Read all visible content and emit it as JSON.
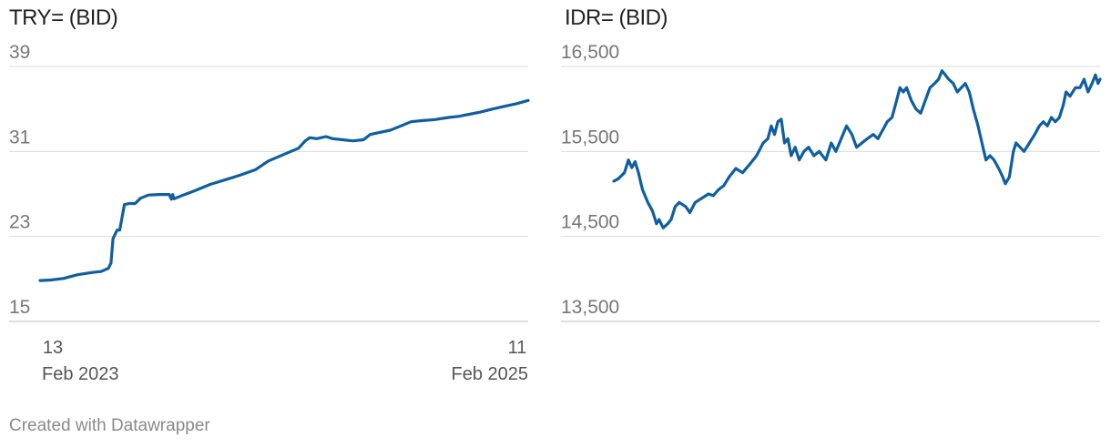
{
  "credit": "Created with Datawrapper",
  "colors": {
    "line": "#0f5fa0",
    "grid": "#dcdcdc",
    "tick_text": "#777777",
    "title_text": "#222222"
  },
  "chart_data": [
    {
      "type": "line",
      "title": "TRY= (BID)",
      "xlabel": "",
      "ylabel": "",
      "ylim": [
        15,
        39
      ],
      "y_ticks": [
        15,
        23,
        31,
        39
      ],
      "y_tick_labels": [
        "15",
        "23",
        "31",
        "39"
      ],
      "xlim": [
        "2023-02-13",
        "2025-02-11"
      ],
      "x_ticks": [
        {
          "date": "2023-02-13",
          "day": "13",
          "month": "Feb 2023"
        },
        {
          "date": "2025-02-11",
          "day": "11",
          "month": "Feb 2025"
        }
      ],
      "grid": true,
      "series": [
        {
          "points": [
            [
              "2023-02-13",
              18.85
            ],
            [
              "2023-03-01",
              18.9
            ],
            [
              "2023-03-20",
              19.05
            ],
            [
              "2023-04-10",
              19.4
            ],
            [
              "2023-05-01",
              19.6
            ],
            [
              "2023-05-15",
              19.7
            ],
            [
              "2023-05-26",
              20.0
            ],
            [
              "2023-05-30",
              20.5
            ],
            [
              "2023-06-02",
              22.8
            ],
            [
              "2023-06-08",
              23.6
            ],
            [
              "2023-06-12",
              23.6
            ],
            [
              "2023-06-19",
              26.0
            ],
            [
              "2023-06-26",
              26.1
            ],
            [
              "2023-07-05",
              26.1
            ],
            [
              "2023-07-13",
              26.6
            ],
            [
              "2023-07-25",
              26.9
            ],
            [
              "2023-08-10",
              26.95
            ],
            [
              "2023-08-25",
              26.95
            ],
            [
              "2023-08-28",
              26.5
            ],
            [
              "2023-08-30",
              26.95
            ],
            [
              "2023-09-01",
              26.55
            ],
            [
              "2023-09-15",
              26.9
            ],
            [
              "2023-10-02",
              27.3
            ],
            [
              "2023-10-25",
              27.9
            ],
            [
              "2023-11-20",
              28.4
            ],
            [
              "2023-12-10",
              28.8
            ],
            [
              "2024-01-01",
              29.3
            ],
            [
              "2024-01-20",
              30.1
            ],
            [
              "2024-02-15",
              30.8
            ],
            [
              "2024-03-05",
              31.3
            ],
            [
              "2024-03-15",
              32.0
            ],
            [
              "2024-03-22",
              32.3
            ],
            [
              "2024-04-01",
              32.2
            ],
            [
              "2024-04-15",
              32.4
            ],
            [
              "2024-04-25",
              32.2
            ],
            [
              "2024-05-10",
              32.1
            ],
            [
              "2024-05-25",
              32.0
            ],
            [
              "2024-06-10",
              32.1
            ],
            [
              "2024-06-20",
              32.6
            ],
            [
              "2024-07-05",
              32.8
            ],
            [
              "2024-07-20",
              33.0
            ],
            [
              "2024-08-05",
              33.4
            ],
            [
              "2024-08-20",
              33.8
            ],
            [
              "2024-09-05",
              33.9
            ],
            [
              "2024-09-25",
              34.0
            ],
            [
              "2024-10-15",
              34.2
            ],
            [
              "2024-10-30",
              34.3
            ],
            [
              "2024-11-15",
              34.5
            ],
            [
              "2024-12-01",
              34.7
            ],
            [
              "2024-12-20",
              35.0
            ],
            [
              "2025-01-10",
              35.3
            ],
            [
              "2025-01-25",
              35.5
            ],
            [
              "2025-02-11",
              35.8
            ]
          ]
        }
      ]
    },
    {
      "type": "line",
      "title": "IDR= (BID)",
      "xlabel": "",
      "ylabel": "",
      "ylim": [
        13500,
        16500
      ],
      "y_ticks": [
        13500,
        14500,
        15500,
        16500
      ],
      "y_tick_labels": [
        "13,500",
        "14,500",
        "15,500",
        "16,500"
      ],
      "xlim": [
        "2023-02-13",
        "2025-02-11"
      ],
      "grid": true,
      "series": [
        {
          "points": [
            [
              "2023-02-13",
              15150
            ],
            [
              "2023-02-20",
              15180
            ],
            [
              "2023-03-01",
              15250
            ],
            [
              "2023-03-07",
              15400
            ],
            [
              "2023-03-12",
              15310
            ],
            [
              "2023-03-17",
              15380
            ],
            [
              "2023-03-22",
              15250
            ],
            [
              "2023-03-28",
              15050
            ],
            [
              "2023-04-05",
              14900
            ],
            [
              "2023-04-12",
              14800
            ],
            [
              "2023-04-18",
              14650
            ],
            [
              "2023-04-22",
              14700
            ],
            [
              "2023-04-28",
              14600
            ],
            [
              "2023-05-05",
              14650
            ],
            [
              "2023-05-10",
              14700
            ],
            [
              "2023-05-16",
              14850
            ],
            [
              "2023-05-22",
              14900
            ],
            [
              "2023-06-01",
              14850
            ],
            [
              "2023-06-07",
              14780
            ],
            [
              "2023-06-15",
              14900
            ],
            [
              "2023-06-25",
              14950
            ],
            [
              "2023-07-05",
              15000
            ],
            [
              "2023-07-12",
              14980
            ],
            [
              "2023-07-20",
              15050
            ],
            [
              "2023-07-28",
              15100
            ],
            [
              "2023-08-05",
              15200
            ],
            [
              "2023-08-15",
              15300
            ],
            [
              "2023-08-25",
              15250
            ],
            [
              "2023-09-05",
              15350
            ],
            [
              "2023-09-15",
              15450
            ],
            [
              "2023-09-25",
              15600
            ],
            [
              "2023-10-02",
              15650
            ],
            [
              "2023-10-07",
              15800
            ],
            [
              "2023-10-12",
              15700
            ],
            [
              "2023-10-17",
              15850
            ],
            [
              "2023-10-22",
              15880
            ],
            [
              "2023-10-27",
              15600
            ],
            [
              "2023-11-01",
              15650
            ],
            [
              "2023-11-06",
              15450
            ],
            [
              "2023-11-12",
              15550
            ],
            [
              "2023-11-18",
              15400
            ],
            [
              "2023-11-25",
              15500
            ],
            [
              "2023-12-02",
              15550
            ],
            [
              "2023-12-10",
              15450
            ],
            [
              "2023-12-18",
              15500
            ],
            [
              "2023-12-28",
              15400
            ],
            [
              "2024-01-05",
              15600
            ],
            [
              "2024-01-12",
              15500
            ],
            [
              "2024-01-20",
              15650
            ],
            [
              "2024-01-28",
              15800
            ],
            [
              "2024-02-05",
              15700
            ],
            [
              "2024-02-12",
              15550
            ],
            [
              "2024-02-20",
              15600
            ],
            [
              "2024-02-28",
              15650
            ],
            [
              "2024-03-08",
              15700
            ],
            [
              "2024-03-15",
              15650
            ],
            [
              "2024-03-22",
              15750
            ],
            [
              "2024-03-29",
              15850
            ],
            [
              "2024-04-05",
              15900
            ],
            [
              "2024-04-12",
              16100
            ],
            [
              "2024-04-17",
              16250
            ],
            [
              "2024-04-22",
              16200
            ],
            [
              "2024-04-27",
              16250
            ],
            [
              "2024-05-04",
              16100
            ],
            [
              "2024-05-11",
              16000
            ],
            [
              "2024-05-18",
              15950
            ],
            [
              "2024-05-25",
              16100
            ],
            [
              "2024-06-01",
              16250
            ],
            [
              "2024-06-08",
              16300
            ],
            [
              "2024-06-14",
              16350
            ],
            [
              "2024-06-19",
              16450
            ],
            [
              "2024-06-24",
              16400
            ],
            [
              "2024-06-29",
              16350
            ],
            [
              "2024-07-06",
              16300
            ],
            [
              "2024-07-12",
              16200
            ],
            [
              "2024-07-18",
              16250
            ],
            [
              "2024-07-24",
              16300
            ],
            [
              "2024-07-30",
              16200
            ],
            [
              "2024-08-05",
              16000
            ],
            [
              "2024-08-12",
              15800
            ],
            [
              "2024-08-18",
              15600
            ],
            [
              "2024-08-24",
              15400
            ],
            [
              "2024-08-30",
              15450
            ],
            [
              "2024-09-05",
              15400
            ],
            [
              "2024-09-12",
              15300
            ],
            [
              "2024-09-18",
              15200
            ],
            [
              "2024-09-22",
              15120
            ],
            [
              "2024-09-28",
              15200
            ],
            [
              "2024-10-04",
              15500
            ],
            [
              "2024-10-08",
              15600
            ],
            [
              "2024-10-14",
              15550
            ],
            [
              "2024-10-20",
              15500
            ],
            [
              "2024-10-28",
              15600
            ],
            [
              "2024-11-05",
              15700
            ],
            [
              "2024-11-12",
              15800
            ],
            [
              "2024-11-18",
              15850
            ],
            [
              "2024-11-24",
              15800
            ],
            [
              "2024-11-30",
              15900
            ],
            [
              "2024-12-06",
              15850
            ],
            [
              "2024-12-12",
              15900
            ],
            [
              "2024-12-18",
              16050
            ],
            [
              "2024-12-22",
              16200
            ],
            [
              "2024-12-28",
              16150
            ],
            [
              "2025-01-05",
              16250
            ],
            [
              "2025-01-12",
              16250
            ],
            [
              "2025-01-18",
              16350
            ],
            [
              "2025-01-24",
              16200
            ],
            [
              "2025-01-30",
              16300
            ],
            [
              "2025-02-04",
              16400
            ],
            [
              "2025-02-08",
              16300
            ],
            [
              "2025-02-11",
              16350
            ]
          ]
        }
      ]
    }
  ]
}
